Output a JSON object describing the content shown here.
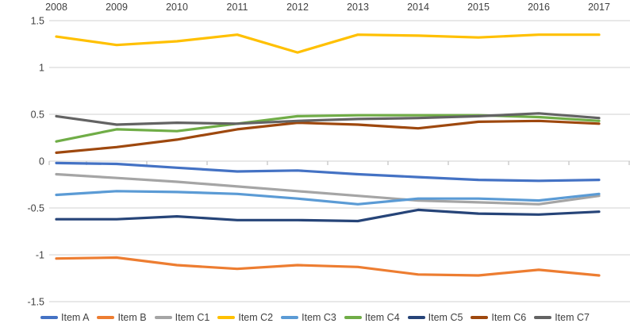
{
  "chart_data": {
    "type": "line",
    "title": "",
    "categories": [
      "2008",
      "2009",
      "2010",
      "2011",
      "2012",
      "2013",
      "2014",
      "2015",
      "2016",
      "2017"
    ],
    "series": [
      {
        "name": "Item A",
        "color": "#4472C4",
        "values": [
          -0.02,
          -0.03,
          -0.07,
          -0.11,
          -0.1,
          -0.14,
          -0.17,
          -0.2,
          -0.21,
          -0.2
        ]
      },
      {
        "name": "Item B",
        "color": "#ED7D31",
        "values": [
          -1.04,
          -1.03,
          -1.11,
          -1.15,
          -1.11,
          -1.13,
          -1.21,
          -1.22,
          -1.16,
          -1.22
        ]
      },
      {
        "name": "Item C1",
        "color": "#A5A5A5",
        "values": [
          -0.14,
          -0.18,
          -0.22,
          -0.27,
          -0.32,
          -0.37,
          -0.42,
          -0.44,
          -0.46,
          -0.37
        ]
      },
      {
        "name": "Item C2",
        "color": "#FFC000",
        "values": [
          1.33,
          1.24,
          1.28,
          1.35,
          1.16,
          1.35,
          1.34,
          1.32,
          1.35,
          1.35
        ]
      },
      {
        "name": "Item C3",
        "color": "#5B9BD5",
        "values": [
          -0.36,
          -0.32,
          -0.33,
          -0.35,
          -0.4,
          -0.46,
          -0.4,
          -0.4,
          -0.42,
          -0.35
        ]
      },
      {
        "name": "Item C4",
        "color": "#70AD47",
        "values": [
          0.21,
          0.34,
          0.32,
          0.4,
          0.48,
          0.49,
          0.49,
          0.49,
          0.47,
          0.43
        ]
      },
      {
        "name": "Item C5",
        "color": "#264478",
        "values": [
          -0.62,
          -0.62,
          -0.59,
          -0.63,
          -0.63,
          -0.64,
          -0.52,
          -0.56,
          -0.57,
          -0.54
        ]
      },
      {
        "name": "Item C6",
        "color": "#9E480E",
        "values": [
          0.09,
          0.15,
          0.23,
          0.34,
          0.41,
          0.39,
          0.35,
          0.42,
          0.43,
          0.4
        ]
      },
      {
        "name": "Item C7",
        "color": "#636363",
        "values": [
          0.48,
          0.39,
          0.41,
          0.4,
          0.43,
          0.45,
          0.46,
          0.48,
          0.51,
          0.46
        ]
      }
    ],
    "ylim": [
      -1.5,
      1.5
    ],
    "ytick_step": 0.5,
    "ytick_labels": [
      "1.5",
      "1",
      "0.5",
      "0",
      "-0.5",
      "-1",
      "-1.5"
    ],
    "ytick_values": [
      1.5,
      1,
      0.5,
      0,
      -0.5,
      -1,
      -1.5
    ],
    "x_axis_position": "top",
    "legend_position": "bottom",
    "grid": "horizontal",
    "gridline_color": "#D9D9D9",
    "axis_tick_color": "#C6C6C6",
    "axis_text_color": "#404040"
  }
}
